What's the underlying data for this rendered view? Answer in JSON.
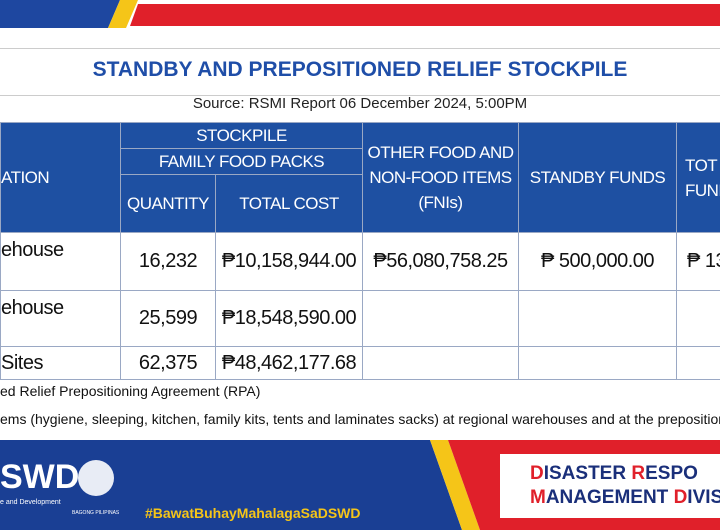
{
  "title": "STANDBY AND PREPOSITIONED RELIEF STOCKPILE",
  "source": "Source: RSMI Report 06  December 2024, 5:00PM",
  "table": {
    "headers": {
      "location": "ATION",
      "stockpile": "STOCKPILE",
      "family_food_packs": "FAMILY FOOD PACKS",
      "quantity": "QUANTITY",
      "total_cost": "TOTAL COST",
      "other_items": [
        "OTHER FOOD AND",
        "NON-FOOD ITEMS",
        "(FNIs)"
      ],
      "standby_funds": "STANDBY FUNDS",
      "total_funds": [
        "TOT",
        "FUND"
      ]
    },
    "rows": [
      {
        "location": "ehouse",
        "quantity": "16,232",
        "total_cost": "₱10,158,944.00",
        "other_items": "₱56,080,758.25",
        "standby_funds": "₱ 500,000.00",
        "total_funds": "₱ 13"
      },
      {
        "location": "ehouse",
        "quantity": "25,599",
        "total_cost": "₱18,548,590.00"
      },
      {
        "location": "Sites",
        "quantity": "62,375",
        "total_cost": "₱48,462,177.68"
      }
    ]
  },
  "notes": [
    "ed Relief Prepositioning Agreement (RPA)",
    "ems (hygiene, sleeping, kitchen, family kits, tents and laminates sacks) at regional warehouses and at  the prepositioned sites."
  ],
  "footer": {
    "logo": "SWD",
    "logo_sub": "e and Development",
    "seal": "BAGONG PILIPINAS",
    "hashtag": "#BawatBuhayMahalagaSaDSWD",
    "division": [
      [
        {
          "text": "D",
          "accent": true
        },
        {
          "text": "ISASTER "
        },
        {
          "text": "R",
          "accent": true
        },
        {
          "text": "ESPO"
        }
      ],
      [
        {
          "text": "M",
          "accent": true
        },
        {
          "text": "ANAGEMENT "
        },
        {
          "text": "D",
          "accent": true
        },
        {
          "text": "IVISIO"
        }
      ]
    ]
  }
}
